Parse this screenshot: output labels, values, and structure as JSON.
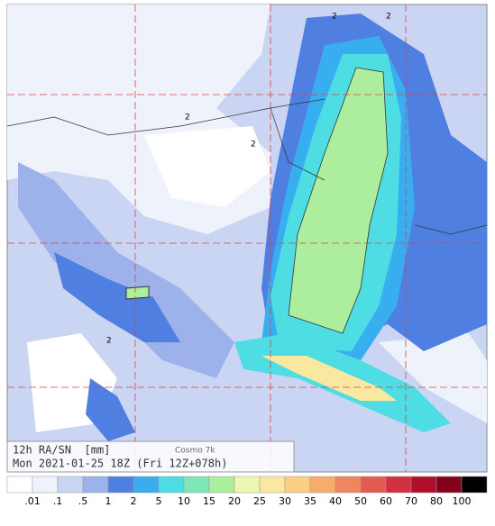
{
  "legend": {
    "title": "12h RA/SN  [mm]",
    "model": "Cosmo 7k",
    "time": "Mon 2021-01-25 18Z (Fri 12Z+078h)"
  },
  "map": {
    "contour_labels": [
      "2",
      "2",
      "2",
      "2",
      "2"
    ]
  },
  "colorbar": {
    "labels": [
      ".01",
      ".1",
      ".5",
      "1",
      "2",
      "5",
      "10",
      "15",
      "20",
      "25",
      "30",
      "35",
      "40",
      "50",
      "60",
      "70",
      "80",
      "100"
    ],
    "colors": [
      "#ffffff",
      "#eef2fb",
      "#c9d5f3",
      "#9db2ea",
      "#4f7fe0",
      "#38aef0",
      "#4fdde4",
      "#7fe6b6",
      "#acee9e",
      "#eef6b4",
      "#fbe8a0",
      "#f9cf88",
      "#f6ad6c",
      "#ef8660",
      "#e45a52",
      "#d22f40",
      "#b20f2c",
      "#84001c",
      "#000000"
    ]
  }
}
